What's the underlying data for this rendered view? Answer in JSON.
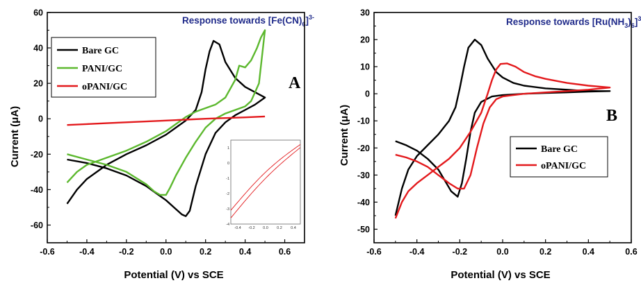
{
  "chart_data": [
    {
      "type": "line",
      "title": "Response towards [Fe(CN)6]3-",
      "title_parts": {
        "main": "Response towards [Fe(CN)",
        "sub": "6",
        "close": "]",
        "sup": "3-"
      },
      "xlabel": "Potential (V) vs SCE",
      "ylabel": "Current (μA)",
      "xlim": [
        -0.6,
        0.7
      ],
      "ylim": [
        -70,
        60
      ],
      "xticks": [
        "-0.6",
        "-0.4",
        "-0.2",
        "0.0",
        "0.2",
        "0.4",
        "0.6"
      ],
      "yticks": [
        "-60",
        "-40",
        "-20",
        "0",
        "20",
        "40",
        "60"
      ],
      "panel_label": "A",
      "legend_position": "top-left",
      "series": [
        {
          "name": "Bare GC",
          "color": "#000000",
          "points": [
            [
              -0.5,
              -48
            ],
            [
              -0.45,
              -40
            ],
            [
              -0.4,
              -34
            ],
            [
              -0.3,
              -26
            ],
            [
              -0.2,
              -20
            ],
            [
              -0.1,
              -15
            ],
            [
              0.0,
              -9
            ],
            [
              0.05,
              -5
            ],
            [
              0.1,
              -1
            ],
            [
              0.15,
              5
            ],
            [
              0.18,
              15
            ],
            [
              0.2,
              28
            ],
            [
              0.22,
              38
            ],
            [
              0.24,
              44
            ],
            [
              0.27,
              42
            ],
            [
              0.3,
              32
            ],
            [
              0.35,
              23
            ],
            [
              0.4,
              18
            ],
            [
              0.45,
              15
            ],
            [
              0.5,
              12
            ],
            [
              0.45,
              8
            ],
            [
              0.4,
              5
            ],
            [
              0.35,
              2
            ],
            [
              0.3,
              -2
            ],
            [
              0.25,
              -8
            ],
            [
              0.2,
              -20
            ],
            [
              0.15,
              -38
            ],
            [
              0.12,
              -52
            ],
            [
              0.1,
              -55
            ],
            [
              0.08,
              -54
            ],
            [
              0.05,
              -51
            ],
            [
              0.0,
              -46
            ],
            [
              -0.05,
              -42
            ],
            [
              -0.1,
              -38
            ],
            [
              -0.2,
              -32
            ],
            [
              -0.3,
              -28
            ],
            [
              -0.4,
              -25
            ],
            [
              -0.5,
              -23
            ]
          ]
        },
        {
          "name": "PANI/GC",
          "color": "#5cb82e",
          "points": [
            [
              -0.5,
              -36
            ],
            [
              -0.45,
              -30
            ],
            [
              -0.4,
              -26
            ],
            [
              -0.3,
              -22
            ],
            [
              -0.2,
              -18
            ],
            [
              -0.1,
              -13
            ],
            [
              0.0,
              -7
            ],
            [
              0.05,
              -3
            ],
            [
              0.1,
              1
            ],
            [
              0.15,
              4
            ],
            [
              0.2,
              6
            ],
            [
              0.25,
              8
            ],
            [
              0.3,
              12
            ],
            [
              0.35,
              22
            ],
            [
              0.37,
              30
            ],
            [
              0.4,
              29
            ],
            [
              0.43,
              33
            ],
            [
              0.46,
              40
            ],
            [
              0.48,
              46
            ],
            [
              0.5,
              50
            ],
            [
              0.47,
              20
            ],
            [
              0.43,
              10
            ],
            [
              0.4,
              7
            ],
            [
              0.35,
              5
            ],
            [
              0.3,
              3
            ],
            [
              0.25,
              0
            ],
            [
              0.2,
              -5
            ],
            [
              0.15,
              -13
            ],
            [
              0.1,
              -22
            ],
            [
              0.05,
              -32
            ],
            [
              0.02,
              -39
            ],
            [
              0.0,
              -43
            ],
            [
              -0.03,
              -43
            ],
            [
              -0.06,
              -41
            ],
            [
              -0.1,
              -37
            ],
            [
              -0.2,
              -30
            ],
            [
              -0.3,
              -26
            ],
            [
              -0.4,
              -23
            ],
            [
              -0.5,
              -20
            ]
          ]
        },
        {
          "name": "oPANI/GC",
          "color": "#e3191c",
          "points": [
            [
              -0.5,
              -3.5
            ],
            [
              -0.4,
              -3
            ],
            [
              -0.3,
              -2.5
            ],
            [
              -0.2,
              -2
            ],
            [
              -0.1,
              -1.5
            ],
            [
              0.0,
              -1
            ],
            [
              0.1,
              -0.5
            ],
            [
              0.2,
              0
            ],
            [
              0.3,
              0.4
            ],
            [
              0.4,
              0.8
            ],
            [
              0.5,
              1.3
            ]
          ]
        }
      ]
    },
    {
      "type": "line",
      "title": "Response towards [Ru(NH3)6]3+",
      "title_parts": {
        "main": "Response towards [Ru(NH",
        "sub1": "3",
        "mid": ")",
        "sub2": "6",
        "close": "]",
        "sup": "3+"
      },
      "xlabel": "Potential (V) vs SCE",
      "ylabel": "Current (μA)",
      "xlim": [
        -0.6,
        0.6
      ],
      "ylim": [
        -55,
        30
      ],
      "xticks": [
        "-0.6",
        "-0.4",
        "-0.2",
        "0.0",
        "0.2",
        "0.4",
        "0.6"
      ],
      "yticks": [
        "-50",
        "-40",
        "-30",
        "-20",
        "-10",
        "0",
        "10",
        "20",
        "30"
      ],
      "panel_label": "B",
      "legend_position": "bottom-right",
      "series": [
        {
          "name": "Bare GC",
          "color": "#000000",
          "points": [
            [
              -0.5,
              -45
            ],
            [
              -0.47,
              -35
            ],
            [
              -0.44,
              -28
            ],
            [
              -0.4,
              -23
            ],
            [
              -0.35,
              -19
            ],
            [
              -0.3,
              -15
            ],
            [
              -0.25,
              -10
            ],
            [
              -0.22,
              -5
            ],
            [
              -0.2,
              2
            ],
            [
              -0.18,
              10
            ],
            [
              -0.16,
              17
            ],
            [
              -0.13,
              20
            ],
            [
              -0.1,
              18
            ],
            [
              -0.07,
              13
            ],
            [
              -0.03,
              8
            ],
            [
              0.0,
              6
            ],
            [
              0.05,
              4
            ],
            [
              0.1,
              3
            ],
            [
              0.2,
              2
            ],
            [
              0.3,
              1.5
            ],
            [
              0.4,
              1
            ],
            [
              0.5,
              1
            ],
            [
              0.4,
              0.8
            ],
            [
              0.3,
              0.5
            ],
            [
              0.2,
              0.3
            ],
            [
              0.1,
              0
            ],
            [
              0.0,
              -0.5
            ],
            [
              -0.05,
              -1
            ],
            [
              -0.1,
              -3
            ],
            [
              -0.13,
              -7
            ],
            [
              -0.15,
              -14
            ],
            [
              -0.17,
              -24
            ],
            [
              -0.19,
              -33
            ],
            [
              -0.21,
              -38
            ],
            [
              -0.24,
              -36
            ],
            [
              -0.27,
              -32
            ],
            [
              -0.3,
              -28
            ],
            [
              -0.35,
              -24
            ],
            [
              -0.4,
              -21
            ],
            [
              -0.45,
              -19
            ],
            [
              -0.5,
              -17.5
            ]
          ]
        },
        {
          "name": "oPANI/GC",
          "color": "#e3191c",
          "points": [
            [
              -0.5,
              -46
            ],
            [
              -0.47,
              -40
            ],
            [
              -0.44,
              -36
            ],
            [
              -0.4,
              -33
            ],
            [
              -0.35,
              -30
            ],
            [
              -0.3,
              -27
            ],
            [
              -0.25,
              -24
            ],
            [
              -0.2,
              -20
            ],
            [
              -0.15,
              -14
            ],
            [
              -0.1,
              -7
            ],
            [
              -0.07,
              0
            ],
            [
              -0.05,
              5
            ],
            [
              -0.03,
              9
            ],
            [
              -0.01,
              11
            ],
            [
              0.02,
              11.2
            ],
            [
              0.06,
              10
            ],
            [
              0.1,
              8
            ],
            [
              0.15,
              6.5
            ],
            [
              0.2,
              5.5
            ],
            [
              0.3,
              4
            ],
            [
              0.4,
              3
            ],
            [
              0.5,
              2.3
            ],
            [
              0.4,
              1.5
            ],
            [
              0.3,
              1
            ],
            [
              0.2,
              0.5
            ],
            [
              0.1,
              0
            ],
            [
              0.05,
              -0.5
            ],
            [
              0.0,
              -1
            ],
            [
              -0.03,
              -2
            ],
            [
              -0.06,
              -5
            ],
            [
              -0.09,
              -11
            ],
            [
              -0.12,
              -20
            ],
            [
              -0.15,
              -30
            ],
            [
              -0.18,
              -35
            ],
            [
              -0.21,
              -35
            ],
            [
              -0.25,
              -33
            ],
            [
              -0.3,
              -30
            ],
            [
              -0.35,
              -27
            ],
            [
              -0.4,
              -25
            ],
            [
              -0.45,
              -23.5
            ],
            [
              -0.5,
              -22.5
            ]
          ]
        }
      ]
    }
  ],
  "inset": {
    "xticks": [
      "-0.4",
      "-0.2",
      "0.0",
      "0.2",
      "0.4"
    ],
    "yticks": [
      "1",
      "0",
      "-1",
      "-2",
      "-3",
      "-4"
    ],
    "xlim": [
      -0.5,
      0.5
    ],
    "ylim": [
      -4,
      1.5
    ],
    "color": "#e3191c"
  }
}
